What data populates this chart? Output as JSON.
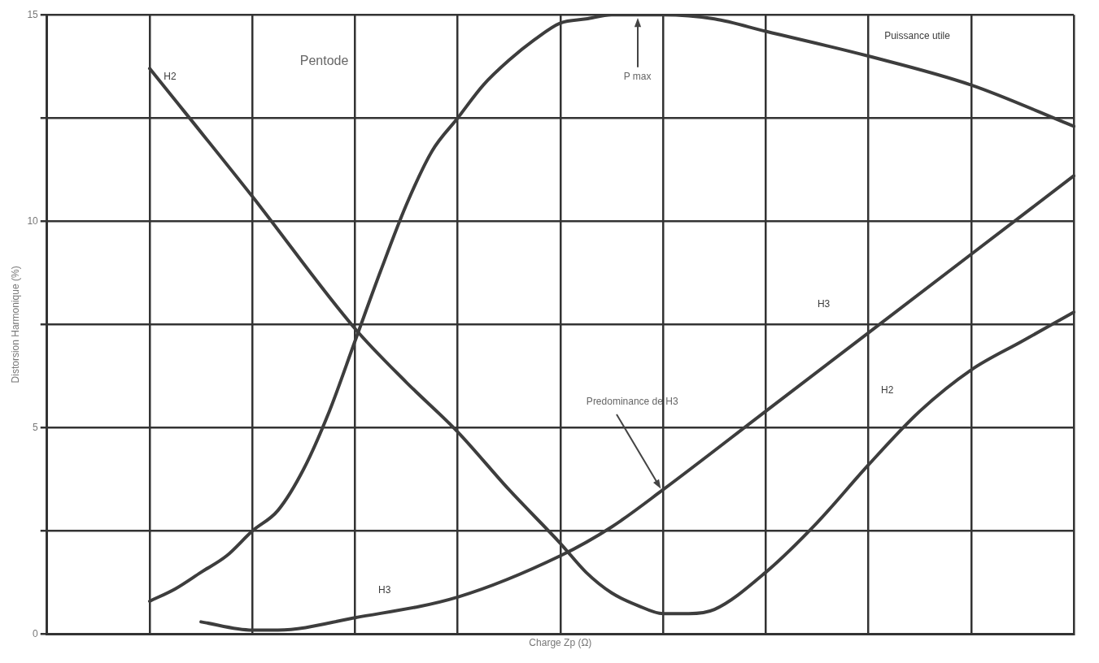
{
  "chart_data": {
    "type": "line",
    "xlabel": "Charge Zp (Ω)",
    "ylabel": "Distorsion Harmonique (%)",
    "categories": [
      null,
      null,
      null,
      null,
      null,
      null,
      null,
      null,
      null,
      null,
      null,
      null,
      null,
      null,
      null,
      null,
      null,
      null,
      null,
      null,
      null,
      null,
      null,
      null,
      null,
      null,
      null,
      null,
      null,
      null,
      null,
      null,
      null,
      null,
      null,
      null,
      null,
      null,
      null,
      null,
      null
    ],
    "series": [
      {
        "name": "Puissance utile",
        "color": "#3d3d3d",
        "values": [
          null,
          null,
          null,
          null,
          0.8,
          1.1,
          1.5,
          1.9,
          2.5,
          3.0,
          4.0,
          5.4,
          7.1,
          8.8,
          10.4,
          11.7,
          12.5,
          13.3,
          13.9,
          14.4,
          14.8,
          14.9,
          15,
          15,
          15,
          null,
          14.9,
          null,
          14.6,
          null,
          null,
          null,
          14.0,
          null,
          null,
          null,
          13.3,
          null,
          null,
          null,
          12.3
        ]
      },
      {
        "name": "H2",
        "color": "#3d3d3d",
        "values": [
          null,
          null,
          null,
          null,
          13.7,
          null,
          null,
          null,
          10.6,
          null,
          null,
          null,
          7.4,
          null,
          6.1,
          null,
          4.9,
          null,
          3.5,
          null,
          2.2,
          1.5,
          1.0,
          0.7,
          0.5,
          0.5,
          0.6,
          null,
          1.5,
          null,
          2.7,
          null,
          4.1,
          null,
          5.4,
          null,
          6.4,
          null,
          7.1,
          null,
          7.8
        ]
      },
      {
        "name": "H3",
        "color": "#3d3d3d",
        "values": [
          null,
          null,
          null,
          null,
          null,
          null,
          0.3,
          null,
          0.1,
          0.1,
          null,
          null,
          0.4,
          null,
          null,
          null,
          0.9,
          null,
          null,
          null,
          1.9,
          null,
          2.6,
          null,
          3.5,
          null,
          null,
          null,
          5.4,
          null,
          null,
          null,
          7.3,
          null,
          null,
          null,
          9.2,
          null,
          null,
          null,
          11.1
        ]
      }
    ],
    "ylim": [
      0,
      15
    ],
    "yticks": [
      0,
      {
        "value": 2.5,
        "label": null
      },
      5,
      {
        "value": 7.5,
        "label": null
      },
      10,
      {
        "value": 12.5,
        "label": null
      },
      15
    ],
    "grid": true,
    "legend": false,
    "marker": "none",
    "line_style": "solid",
    "tick_labels": "y",
    "annotations": [
      "Pentode",
      "P max",
      "Predominance de H3"
    ]
  }
}
